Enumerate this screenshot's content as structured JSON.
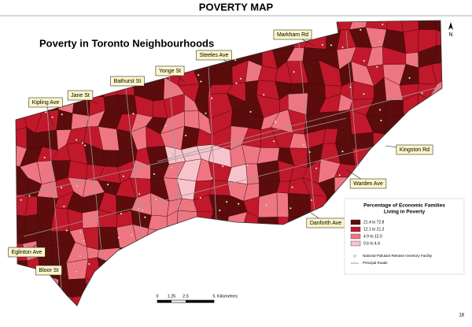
{
  "header": {
    "title": "POVERTY MAP"
  },
  "map": {
    "title": "Poverty in Toronto Neighbourhoods",
    "road_labels": [
      "Markham Rd",
      "Steeles Ave",
      "Yonge St",
      "Bathurst St",
      "Jane St",
      "Kipling Ave",
      "Kingston Rd",
      "Warden Ave",
      "Danforth Ave",
      "Eglinton Ave",
      "Bloor St"
    ],
    "legend": {
      "title_lines": [
        "Percentage of Economic Families",
        "Living in Poverty"
      ],
      "items": [
        {
          "label": "21.4 to 72.8",
          "color": "#5c0c0c"
        },
        {
          "label": "12.1 to 21.3",
          "color": "#c2182b"
        },
        {
          "label": "4.9 to 12.0",
          "color": "#ee7683"
        },
        {
          "label": "0.6 to 4.4",
          "color": "#f8c4cb"
        }
      ],
      "facility_label": "National Pollutant Release Inventory Facility",
      "roads_label": "Principal Roads"
    },
    "scale": {
      "labels": [
        "0",
        "1.25",
        "2.5",
        "5"
      ],
      "unit": "Kilometres"
    },
    "north": "N"
  },
  "page_number": "18"
}
